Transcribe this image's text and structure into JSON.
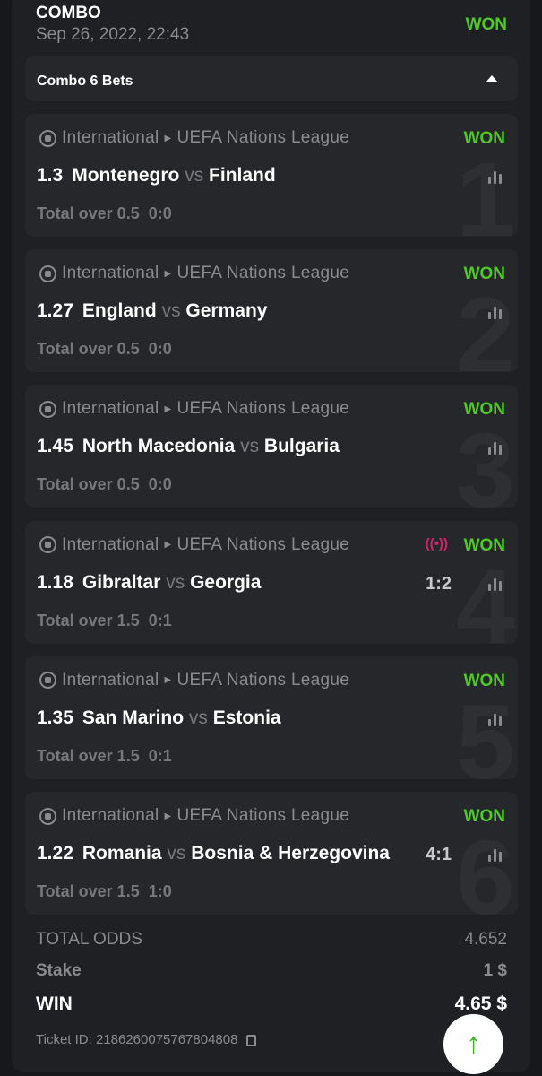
{
  "header": {
    "title": "COMBO",
    "date": "Sep 26, 2022, 22:43",
    "status": "WON"
  },
  "combo": {
    "label": "Combo 6 Bets"
  },
  "bets": [
    {
      "num": "1",
      "category": "International",
      "league": "UEFA Nations League",
      "status": "WON",
      "odds": "1.3",
      "home": "Montenegro",
      "vs": "vs",
      "away": "Finland",
      "score": "",
      "live": false,
      "market": "Total over 0.5",
      "result": "0:0"
    },
    {
      "num": "2",
      "category": "International",
      "league": "UEFA Nations League",
      "status": "WON",
      "odds": "1.27",
      "home": "England",
      "vs": "vs",
      "away": "Germany",
      "score": "",
      "live": false,
      "market": "Total over 0.5",
      "result": "0:0"
    },
    {
      "num": "3",
      "category": "International",
      "league": "UEFA Nations League",
      "status": "WON",
      "odds": "1.45",
      "home": "North Macedonia",
      "vs": "vs",
      "away": "Bulgaria",
      "score": "",
      "live": false,
      "market": "Total over 0.5",
      "result": "0:0"
    },
    {
      "num": "4",
      "category": "International",
      "league": "UEFA Nations League",
      "status": "WON",
      "odds": "1.18",
      "home": "Gibraltar",
      "vs": "vs",
      "away": "Georgia",
      "score": "1:2",
      "live": true,
      "market": "Total over 1.5",
      "result": "0:1"
    },
    {
      "num": "5",
      "category": "International",
      "league": "UEFA Nations League",
      "status": "WON",
      "odds": "1.35",
      "home": "San Marino",
      "vs": "vs",
      "away": "Estonia",
      "score": "",
      "live": false,
      "market": "Total over 1.5",
      "result": "0:1"
    },
    {
      "num": "6",
      "category": "International",
      "league": "UEFA Nations League",
      "status": "WON",
      "odds": "1.22",
      "home": "Romania",
      "vs": "vs",
      "away": "Bosnia & Herzegovina",
      "score": "4:1",
      "live": false,
      "market": "Total over 1.5",
      "result": "1:0"
    }
  ],
  "summary": {
    "total_odds_label": "TOTAL ODDS",
    "total_odds": "4.652",
    "stake_label": "Stake",
    "stake": "1 $",
    "win_label": "WIN",
    "win": "4.65 $",
    "ticket_label": "Ticket ID: 2186260075767804808"
  },
  "colors": {
    "won": "#4fc926",
    "live": "#d6246a",
    "card": "#26272b"
  },
  "icons": {
    "league": "soccer-ball-icon",
    "stats": "bar-chart-icon",
    "live": "live-broadcast-icon",
    "copy": "copy-icon",
    "scroll_top": "arrow-up-icon"
  }
}
